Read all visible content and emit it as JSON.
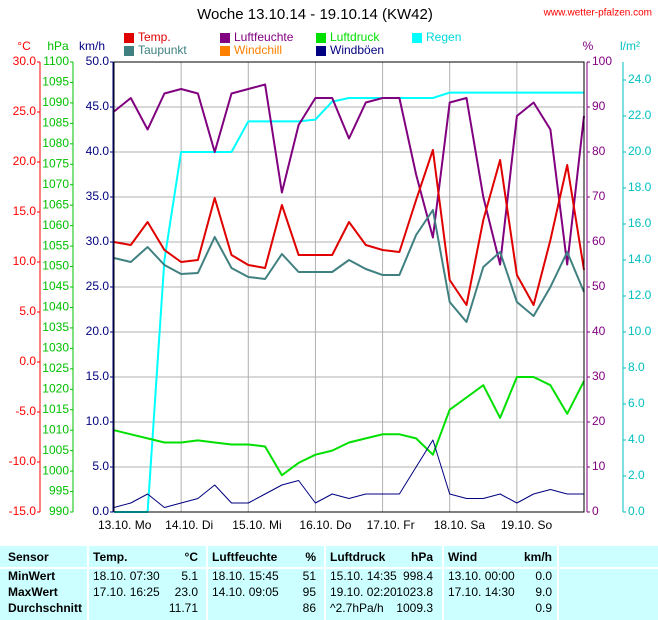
{
  "chart_data": {
    "type": "line",
    "title": "Woche 13.10.14 - 19.10.14 (KW42)",
    "source": "www.wetter-pfalzen.com",
    "xlim": [
      13,
      20
    ],
    "xticks": [
      {
        "value": 13,
        "label": "13.10. Mo"
      },
      {
        "value": 14,
        "label": "14.10. Di"
      },
      {
        "value": 15,
        "label": "15.10. Mi"
      },
      {
        "value": 16,
        "label": "16.10. Do"
      },
      {
        "value": 17,
        "label": "17.10. Fr"
      },
      {
        "value": 18,
        "label": "18.10. Sa"
      },
      {
        "value": 19,
        "label": "19.10. So"
      }
    ],
    "xgrid": true,
    "axes": [
      {
        "label": "°C",
        "side": "left",
        "color": "#ff0000",
        "lim": [
          -15,
          30
        ],
        "ticks": [
          {
            "value": -15,
            "label": "-15.0"
          },
          {
            "value": -10,
            "label": "-10.0"
          },
          {
            "value": -5,
            "label": "-5.0"
          },
          {
            "value": 0,
            "label": "0.0"
          },
          {
            "value": 5,
            "label": "5.0"
          },
          {
            "value": 10,
            "label": "10.0"
          },
          {
            "value": 15,
            "label": "15.0"
          },
          {
            "value": 20,
            "label": "20.0"
          },
          {
            "value": 25,
            "label": "25.0"
          },
          {
            "value": 30,
            "label": "30.0"
          }
        ]
      },
      {
        "label": "hPa",
        "side": "left",
        "color": "#00c000",
        "lim": [
          990,
          1100
        ],
        "ticks": [
          990,
          995,
          1000,
          1005,
          1010,
          1015,
          1020,
          1025,
          1030,
          1035,
          1040,
          1045,
          1050,
          1055,
          1060,
          1065,
          1070,
          1075,
          1080,
          1085,
          1090,
          1095,
          1100
        ]
      },
      {
        "label": "km/h",
        "side": "left",
        "color": "#000080",
        "lim": [
          0,
          50
        ],
        "grid": true,
        "ticks": [
          {
            "value": 0,
            "label": "0.0"
          },
          {
            "value": 5,
            "label": "5.0"
          },
          {
            "value": 10,
            "label": "10.0"
          },
          {
            "value": 15,
            "label": "15.0"
          },
          {
            "value": 20,
            "label": "20.0"
          },
          {
            "value": 25,
            "label": "25.0"
          },
          {
            "value": 30,
            "label": "30.0"
          },
          {
            "value": 35,
            "label": "35.0"
          },
          {
            "value": 40,
            "label": "40.0"
          },
          {
            "value": 45,
            "label": "45.0"
          },
          {
            "value": 50,
            "label": "50.0"
          }
        ]
      },
      {
        "label": "%",
        "side": "right",
        "color": "#800080",
        "lim": [
          0,
          100
        ],
        "ticks": [
          0,
          10,
          20,
          30,
          40,
          50,
          60,
          70,
          80,
          90,
          100
        ]
      },
      {
        "label": "l/m²",
        "side": "right",
        "color": "#00c0c0",
        "lim": [
          0,
          25
        ],
        "ticks": [
          {
            "value": 0,
            "label": "0.0"
          },
          {
            "value": 2,
            "label": "2.0"
          },
          {
            "value": 4,
            "label": "4.0"
          },
          {
            "value": 6,
            "label": "6.0"
          },
          {
            "value": 8,
            "label": "8.0"
          },
          {
            "value": 10,
            "label": "10.0"
          },
          {
            "value": 12,
            "label": "12.0"
          },
          {
            "value": 14,
            "label": "14.0"
          },
          {
            "value": 16,
            "label": "16.0"
          },
          {
            "value": 18,
            "label": "18.0"
          },
          {
            "value": 20,
            "label": "20.0"
          },
          {
            "value": 22,
            "label": "22.0"
          },
          {
            "value": 24,
            "label": "24.0"
          }
        ]
      }
    ],
    "x": [
      13,
      13.25,
      13.5,
      13.75,
      14,
      14.25,
      14.5,
      14.75,
      15,
      15.25,
      15.5,
      15.75,
      16,
      16.25,
      16.5,
      16.75,
      17,
      17.25,
      17.5,
      17.75,
      18,
      18.25,
      18.5,
      18.75,
      19,
      19.25,
      19.5,
      19.75,
      20
    ],
    "series": [
      {
        "name": "Temp.",
        "color": "#e00000",
        "axis": "°C",
        "values": [
          12.0,
          11.7,
          14.0,
          11.2,
          10.0,
          10.2,
          16.4,
          10.7,
          9.7,
          9.4,
          15.7,
          10.7,
          10.7,
          10.7,
          14.0,
          11.7,
          11.2,
          11.0,
          16.2,
          21.2,
          8.2,
          5.7,
          14.2,
          20.2,
          8.7,
          5.7,
          12.2,
          19.7,
          9.2
        ]
      },
      {
        "name": "Luftfeuchte",
        "color": "#800080",
        "axis": "%",
        "values": [
          89,
          92,
          85,
          93,
          94,
          93,
          80,
          93,
          94,
          95,
          71,
          86,
          92,
          92,
          83,
          91,
          92,
          92,
          75,
          61,
          91,
          92,
          70,
          55,
          88,
          91,
          85,
          55,
          88
        ]
      },
      {
        "name": "Luftdruck",
        "color": "#00e000",
        "axis": "hPa",
        "values": [
          1010,
          1009,
          1008,
          1007,
          1007,
          1007.5,
          1007,
          1006.5,
          1006.5,
          1006,
          999,
          1002,
          1004,
          1005,
          1007,
          1008,
          1009,
          1009,
          1008,
          1004,
          1015,
          1018,
          1021,
          1013,
          1023,
          1023,
          1021,
          1014,
          1022
        ]
      },
      {
        "name": "Regen",
        "color": "#00ffff",
        "axis": "l/m²",
        "values": [
          0,
          0,
          0,
          14,
          20,
          20,
          20,
          20,
          21.7,
          21.7,
          21.7,
          21.7,
          21.8,
          22.8,
          23,
          23,
          23,
          23,
          23,
          23,
          23.3,
          23.3,
          23.3,
          23.3,
          23.3,
          23.3,
          23.3,
          23.3,
          23.3
        ]
      },
      {
        "name": "Taupunkt",
        "color": "#408080",
        "axis": "°C",
        "values": [
          10.4,
          10.0,
          11.5,
          9.7,
          8.8,
          8.9,
          12.5,
          9.4,
          8.5,
          8.3,
          10.8,
          9.0,
          9.0,
          9.0,
          10.2,
          9.3,
          8.7,
          8.7,
          12.7,
          15.2,
          6.0,
          4.0,
          9.5,
          11.0,
          6.0,
          4.6,
          7.5,
          11.0,
          7.0
        ]
      },
      {
        "name": "Windchill",
        "color": "#ff8000",
        "axis": "°C",
        "values": [
          null,
          null,
          null,
          null,
          null,
          null,
          null,
          null,
          null,
          null,
          null,
          null,
          null,
          null,
          null,
          null,
          null,
          null,
          null,
          null,
          null,
          null,
          null,
          null,
          null,
          null,
          null,
          null,
          null
        ]
      },
      {
        "name": "Windböen",
        "color": "#000080",
        "axis": "km/h",
        "values": [
          0.5,
          1,
          2,
          0.5,
          1,
          1.5,
          3,
          1,
          1,
          2,
          3,
          3.5,
          1,
          2,
          1.5,
          2,
          2,
          2,
          5,
          8,
          2,
          1.5,
          1.5,
          2,
          1,
          2,
          2.5,
          2,
          2
        ]
      }
    ]
  },
  "table": {
    "header": [
      "Sensor",
      "Temp.",
      "°C",
      "Luftfeuchte",
      "%",
      "Luftdruck",
      "hPa",
      "Wind",
      "km/h"
    ],
    "rows": [
      [
        "MinWert",
        "18.10. 07:30",
        "5.1",
        "18.10. 15:45",
        "51",
        "15.10. 14:35",
        "998.4",
        "13.10. 00:00",
        "0.0"
      ],
      [
        "MaxWert",
        "17.10. 16:25",
        "23.0",
        "14.10. 09:05",
        "95",
        "19.10. 02:20",
        "1023.8",
        "17.10. 14:30",
        "9.0"
      ],
      [
        "Durchschnitt",
        null,
        "11.71",
        null,
        "86",
        "^2.7hPa/h",
        "1009.3",
        null,
        "0.9"
      ]
    ]
  }
}
